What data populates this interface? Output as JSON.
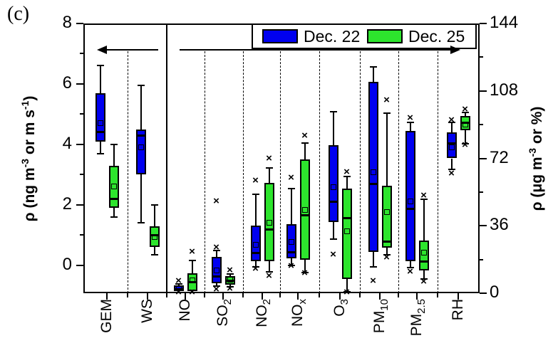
{
  "figure_label": "(c)",
  "legend": {
    "items": [
      {
        "label": "Dec. 22",
        "color": "#0000f0"
      },
      {
        "label": "Dec. 25",
        "color": "#2de52d"
      }
    ]
  },
  "chart_data": {
    "type": "box",
    "style": {
      "outlier_marker": "×",
      "box_border": "#000000",
      "background": "#ffffff"
    },
    "series": [
      {
        "name": "Dec. 22",
        "color": "#0000f0"
      },
      {
        "name": "Dec. 25",
        "color": "#2de52d"
      }
    ],
    "axes": {
      "left": {
        "title": "ρ (ng m⁻³ or m s⁻¹)",
        "title_parts": [
          {
            "t": "ρ (ng m"
          },
          {
            "t": "-3",
            "sup": true
          },
          {
            "t": " or m s"
          },
          {
            "t": "-1",
            "sup": true
          },
          {
            "t": ")"
          }
        ],
        "ticks": [
          8,
          6,
          4,
          2,
          0
        ],
        "minor_ticks": [
          7,
          5,
          3,
          1
        ],
        "max": 8,
        "min": -0.92
      },
      "right": {
        "title": "ρ (μg m⁻³ or %)",
        "title_parts": [
          {
            "t": "ρ (μg m"
          },
          {
            "t": "-3",
            "sup": true
          },
          {
            "t": " or %)"
          }
        ],
        "ticks": [
          144,
          108,
          72,
          36,
          0
        ],
        "minor_ticks": [
          126,
          90,
          54,
          18
        ],
        "max": 144,
        "min": 0
      },
      "x": {
        "labels": [
          {
            "main": "GEM",
            "sub": ""
          },
          {
            "main": "WS",
            "sub": ""
          },
          {
            "main": "NO",
            "sub": ""
          },
          {
            "main": "SO",
            "sub": "2"
          },
          {
            "main": "NO",
            "sub": "2"
          },
          {
            "main": "NO",
            "sub": "x"
          },
          {
            "main": "O",
            "sub": "3"
          },
          {
            "main": "PM",
            "sub": "10"
          },
          {
            "main": "PM",
            "sub": "2.5"
          },
          {
            "main": "RH",
            "sub": ""
          }
        ]
      }
    },
    "categories": [
      "GEM",
      "WS",
      "NO",
      "SO2",
      "NO2",
      "NOx",
      "O3",
      "PM10",
      "PM2.5",
      "RH"
    ],
    "boxes": [
      {
        "category": "GEM",
        "axis": "left",
        "dec22": {
          "low": 3.7,
          "q1": 4.1,
          "median": 4.4,
          "mean": 4.7,
          "q3": 5.7,
          "high": 6.6,
          "outliers_above": [],
          "outliers_below": []
        },
        "dec25": {
          "low": 1.6,
          "q1": 1.9,
          "median": 2.2,
          "mean": 2.6,
          "q3": 3.3,
          "high": 4.0,
          "outliers_above": [],
          "outliers_below": []
        }
      },
      {
        "category": "WS",
        "axis": "left",
        "dec22": {
          "low": 1.4,
          "q1": 3.0,
          "median": 4.3,
          "mean": 3.9,
          "q3": 4.5,
          "high": 5.95,
          "outliers_above": [],
          "outliers_below": []
        },
        "dec25": {
          "low": 0.35,
          "q1": 0.6,
          "median": 1.0,
          "mean": 0.95,
          "q3": 1.3,
          "high": 2.0,
          "outliers_above": [],
          "outliers_below": []
        }
      },
      {
        "category": "NO",
        "axis": "right",
        "dec22": {
          "low": 0.5,
          "q1": 1.0,
          "median": 2.2,
          "mean": 2.8,
          "q3": 4.0,
          "high": 5.0,
          "outliers_above": [
            6.5
          ],
          "outliers_below": [
            0.3
          ]
        },
        "dec25": {
          "low": 0.4,
          "q1": 1.0,
          "median": 6.0,
          "mean": 7.0,
          "q3": 10.5,
          "high": 17.5,
          "outliers_above": [
            22
          ],
          "outliers_below": [
            0.3
          ]
        }
      },
      {
        "category": "SO2",
        "axis": "right",
        "dec22": {
          "low": 3.8,
          "q1": 5.3,
          "median": 9.0,
          "mean": 12.0,
          "q3": 19.5,
          "high": 22.8,
          "outliers_above": [
            24.5,
            49
          ],
          "outliers_below": [
            2.0
          ]
        },
        "dec25": {
          "low": 3.4,
          "q1": 4.6,
          "median": 6.5,
          "mean": 7.2,
          "q3": 9.1,
          "high": 10.3,
          "outliers_above": [
            12
          ],
          "outliers_below": [
            2.3
          ]
        }
      },
      {
        "category": "NO2",
        "axis": "right",
        "dec22": {
          "low": 14,
          "q1": 17,
          "median": 21.5,
          "mean": 26,
          "q3": 36,
          "high": 53,
          "outliers_above": [
            60
          ],
          "outliers_below": [
            13
          ]
        },
        "dec25": {
          "low": 11.5,
          "q1": 17,
          "median": 34,
          "mean": 37.5,
          "q3": 59,
          "high": 67,
          "outliers_above": [
            72
          ],
          "outliers_below": [
            9
          ]
        }
      },
      {
        "category": "NOx",
        "axis": "right",
        "dec22": {
          "low": 15,
          "q1": 18.5,
          "median": 22,
          "mean": 27.5,
          "q3": 37,
          "high": 56,
          "outliers_above": [
            61.5
          ],
          "outliers_below": [
            14.5
          ]
        },
        "dec25": {
          "low": 11,
          "q1": 18,
          "median": 41.5,
          "mean": 44.5,
          "q3": 71.5,
          "high": 80,
          "outliers_above": [
            84
          ],
          "outliers_below": [
            10.5
          ]
        }
      },
      {
        "category": "O3",
        "axis": "right",
        "dec22": {
          "low": 29,
          "q1": 38,
          "median": 49,
          "mean": 56.5,
          "q3": 79,
          "high": 97,
          "outliers_above": [],
          "outliers_below": [
            20.5
          ]
        },
        "dec25": {
          "low": 0.8,
          "q1": 7.6,
          "median": 40,
          "mean": 33,
          "q3": 56,
          "high": 62.5,
          "outliers_above": [
            64.5
          ],
          "outliers_below": [
            0.5
          ]
        }
      },
      {
        "category": "PM10",
        "axis": "right",
        "dec22": {
          "low": 14,
          "q1": 22,
          "median": 58.5,
          "mean": 64.5,
          "q3": 113,
          "high": 121,
          "outliers_above": [],
          "outliers_below": [
            6.5
          ]
        },
        "dec25": {
          "low": 20.5,
          "q1": 24.5,
          "median": 27.5,
          "mean": 43.5,
          "q3": 57.5,
          "high": 96,
          "outliers_above": [
            103
          ],
          "outliers_below": [
            19
          ]
        }
      },
      {
        "category": "PM2.5",
        "axis": "right",
        "dec22": {
          "low": 13.5,
          "q1": 17,
          "median": 45,
          "mean": 49,
          "q3": 86.5,
          "high": 91,
          "outliers_above": [
            93.5
          ],
          "outliers_below": [
            11.5
          ]
        },
        "dec25": {
          "low": 7.6,
          "q1": 12,
          "median": 17,
          "mean": 21.5,
          "q3": 28,
          "high": 50,
          "outliers_above": [
            52
          ],
          "outliers_below": [
            6
          ]
        }
      },
      {
        "category": "RH",
        "axis": "right",
        "dec22": {
          "low": 66,
          "q1": 72,
          "median": 80,
          "mean": 78,
          "q3": 86,
          "high": 91,
          "outliers_above": [
            92.5
          ],
          "outliers_below": [
            64
          ]
        },
        "dec25": {
          "low": 79.8,
          "q1": 87,
          "median": 91,
          "mean": 90,
          "q3": 94.5,
          "high": 96.5,
          "outliers_above": [
            98
          ],
          "outliers_below": [
            79
          ]
        }
      }
    ]
  }
}
